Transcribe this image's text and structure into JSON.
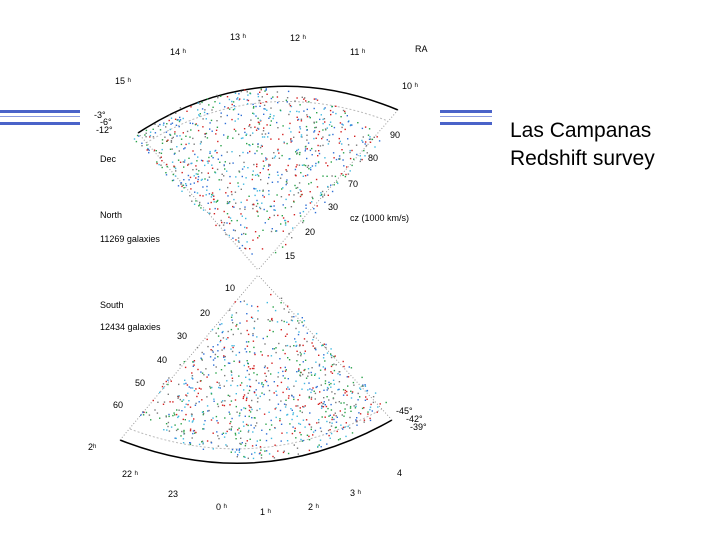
{
  "slide": {
    "title_line1": "Las Campanas",
    "title_line2": "Redshift survey"
  },
  "colors": {
    "rule": "#4a63c9",
    "points": [
      "#d42020",
      "#2aa24a",
      "#2f6fd6",
      "#40b8e0",
      "#7a7a7a"
    ],
    "boundary": "#000000"
  },
  "north": {
    "ra_labels": [
      "13 ʰ",
      "12 ʰ",
      "14 ʰ",
      "11 ʰ",
      "RA",
      "15 ʰ",
      "10 ʰ"
    ],
    "dec_labels": [
      "-3°",
      "-6°",
      "-12°",
      "Dec"
    ],
    "cz_labels": [
      "90",
      "80",
      "70",
      "30",
      "20",
      "15"
    ],
    "cz_unit": "cz (1000 km/s)",
    "name": "North",
    "count": "11269 galaxies"
  },
  "south": {
    "name": "South",
    "count": "12434 galaxies",
    "cz_labels": [
      "10",
      "20",
      "30",
      "40",
      "50",
      "60"
    ],
    "dec_labels": [
      "-45°",
      "-42°",
      "-39°"
    ],
    "ra_labels": [
      "2ʰ",
      "22 ʰ",
      "23",
      "0 ʰ",
      "1 ʰ",
      "2 ʰ",
      "3 ʰ",
      "4"
    ]
  }
}
